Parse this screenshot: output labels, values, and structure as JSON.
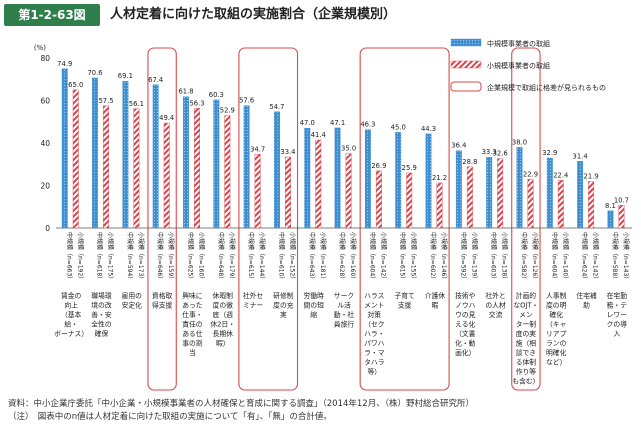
{
  "figure": {
    "number": "第1-2-63図",
    "title": "人材定着に向けた取組の実施割合（企業規模別）",
    "source": "資料：中小企業庁委託「中小企業・小規模事業者の人材確保と育成に関する調査」（2014年12月、（株）野村総合研究所）",
    "note": "（注）　図表中のn値は人材定着に向けた取組の実施について「有」、「無」の合計値。"
  },
  "colors": {
    "medium": "#3f8fd0",
    "small": "#d9444c",
    "highlight": "#d94a4a"
  },
  "chart_data": {
    "type": "bar",
    "ylabel": "(%)",
    "ylim": [
      0,
      80
    ],
    "yticks": [
      0,
      20,
      40,
      60,
      80
    ],
    "legend": {
      "placement": "top-right",
      "highlight_label": "企業規模で取組に格差が見られるもの"
    },
    "series": [
      {
        "name": "中規模事業者の取組",
        "values": [
          74.9,
          70.6,
          69.1,
          67.4,
          61.8,
          60.3,
          57.6,
          54.7,
          47.0,
          47.1,
          46.3,
          45.0,
          44.3,
          36.4,
          33.3,
          38.0,
          32.9,
          31.4,
          8.1
        ]
      },
      {
        "name": "小規模事業者の取組",
        "values": [
          65.0,
          57.5,
          56.1,
          49.4,
          56.3,
          52.9,
          34.7,
          33.4,
          41.4,
          35.0,
          26.9,
          25.9,
          21.2,
          28.8,
          32.6,
          22.9,
          22.4,
          21.9,
          10.7
        ]
      }
    ],
    "categories": [
      "賃金の向上（基本給・ボーナス）",
      "職場環境の改善・安全性の確保",
      "雇用の安定化",
      "資格取得支援",
      "興味にあった仕事・責任のある仕事の割当",
      "休暇制度の徹底（週休2日・長期休暇）",
      "社外セミナー",
      "研修制度の充実",
      "労働時間の短縮",
      "サークル活動・社員旅行",
      "ハラスメント対策（セクハラ・パワハラ・マタハラ等）",
      "子育て支援",
      "介護休暇",
      "技術やノウハウの見える化（文書化・動画化）",
      "社外との人材交流",
      "計画的なOJT・メンター制度の実施（相談できる体制作り等も含む）",
      "人事制度の明確化（キャリアプランの明確化など）",
      "住宅補助",
      "在宅勤務・テレワークの導入"
    ],
    "category_lines": [
      [
        "賃金の",
        "向上",
        "（基本",
        "給・",
        "ボーナス）"
      ],
      [
        "職場環",
        "境の改",
        "善・安",
        "全性の",
        "確保"
      ],
      [
        "雇用の",
        "安定化"
      ],
      [
        "資格取",
        "得支援"
      ],
      [
        "興味に",
        "あった",
        "仕事・",
        "責任の",
        "ある仕",
        "事の割",
        "当"
      ],
      [
        "休暇制",
        "度の徹",
        "底（週",
        "休2日・",
        "長期休",
        "暇）"
      ],
      [
        "社外セ",
        "ミナー"
      ],
      [
        "研修制",
        "度の充",
        "実"
      ],
      [
        "労働時",
        "間の短",
        "縮"
      ],
      [
        "サーク",
        "ル活",
        "動・社",
        "員旅行"
      ],
      [
        "ハラス",
        "メント",
        "対策",
        "（セク",
        "ハラ・",
        "パワハ",
        "ラ・マ",
        "タハラ",
        "等）"
      ],
      [
        "子育て",
        "支援"
      ],
      [
        "介護休",
        "暇"
      ],
      [
        "技術や",
        "ノウハ",
        "ウの見",
        "える化",
        "（文書",
        "化・動",
        "画化）"
      ],
      [
        "社外と",
        "の人材",
        "交流"
      ],
      [
        "計画的",
        "なOJT・",
        "メン",
        "ター制",
        "度の実",
        "施（相",
        "談でき",
        "る体制",
        "作り等",
        "も含む）"
      ],
      [
        "人事制",
        "度の明",
        "確化",
        "（キャ",
        "リアプ",
        "ランの",
        "明確化",
        "など）"
      ],
      [
        "住宅補",
        "助"
      ],
      [
        "在宅勤",
        "務・テ",
        "レワー",
        "クの導",
        "入"
      ]
    ],
    "n_labels": [
      [
        "中規模（n=663）",
        "小規模（n=192）"
      ],
      [
        "中規模（n=618）",
        "小規模（n=175）"
      ],
      [
        "中規模（n=594）",
        "小規模（n=173）"
      ],
      [
        "中規模（n=646）",
        "小規模（n=159）"
      ],
      [
        "中規模（n=625）",
        "小規模（n=160）"
      ],
      [
        "中規模（n=648）",
        "小規模（n=179）"
      ],
      [
        "中規模（n=615）",
        "小規模（n=144）"
      ],
      [
        "中規模（n=610）",
        "小規模（n=152）"
      ],
      [
        "中規模（n=643）",
        "小規模（n=181）"
      ],
      [
        "中規模（n=628）",
        "小規模（n=160）"
      ],
      [
        "中規模（n=604）",
        "小規模（n=142）"
      ],
      [
        "中規模（n=615）",
        "小規模（n=155）"
      ],
      [
        "中規模（n=602）",
        "小規模（n=146）"
      ],
      [
        "中規模（n=592）",
        "小規模（n=139）"
      ],
      [
        "中規模（n=603）",
        "小規模（n=138）"
      ],
      [
        "中規模（n=582）",
        "小規模（n=126）"
      ],
      [
        "中規模（n=604）",
        "小規模（n=140）"
      ],
      [
        "中規模（n=624）",
        "小規模（n=142）"
      ],
      [
        "中規模（n=588）",
        "小規模（n=143）"
      ]
    ],
    "highlighted_groups": [
      [
        3,
        3
      ],
      [
        6,
        7
      ],
      [
        10,
        12
      ],
      [
        15,
        15
      ]
    ]
  }
}
